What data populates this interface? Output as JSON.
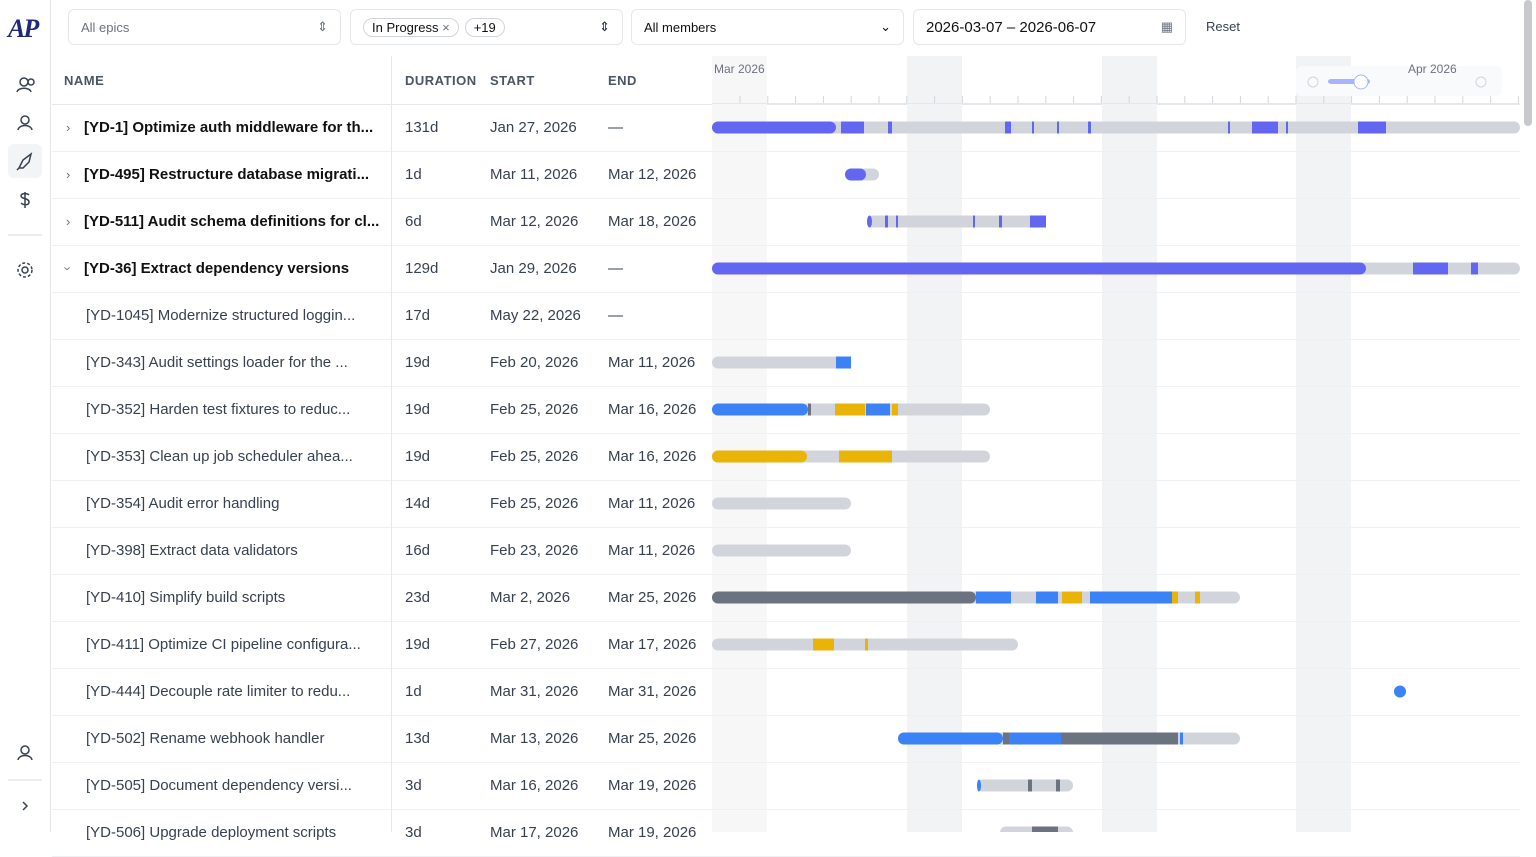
{
  "sidebar": {
    "logo": "AP"
  },
  "filters": {
    "epics": "All epics",
    "status_chip": "In Progress",
    "status_more": "+19",
    "members": "All members",
    "date_range": "2026-03-07 – 2026-06-07",
    "reset": "Reset"
  },
  "table": {
    "columns": [
      "NAME",
      "DURATION",
      "START",
      "END"
    ],
    "timeline_months": [
      "Mar 2026",
      "Apr 2026"
    ],
    "rows": [
      [
        "[YD-1] Optimize auth middleware for th...",
        "131d",
        "Jan 27, 2026",
        "—"
      ],
      [
        "[YD-495] Restructure database migrati...",
        "1d",
        "Mar 11, 2026",
        "Mar 12, 2026"
      ],
      [
        "[YD-511] Audit schema definitions for cl...",
        "6d",
        "Mar 12, 2026",
        "Mar 18, 2026"
      ],
      [
        "[YD-36] Extract dependency versions",
        "129d",
        "Jan 29, 2026",
        "—"
      ],
      [
        "[YD-1045] Modernize structured loggin...",
        "17d",
        "May 22, 2026",
        "—"
      ],
      [
        "[YD-343] Audit settings loader for the ...",
        "19d",
        "Feb 20, 2026",
        "Mar 11, 2026"
      ],
      [
        "[YD-352] Harden test fixtures to reduc...",
        "19d",
        "Feb 25, 2026",
        "Mar 16, 2026"
      ],
      [
        "[YD-353] Clean up job scheduler ahea...",
        "19d",
        "Feb 25, 2026",
        "Mar 16, 2026"
      ],
      [
        "[YD-354] Audit error handling",
        "14d",
        "Feb 25, 2026",
        "Mar 11, 2026"
      ],
      [
        "[YD-398] Extract data validators",
        "16d",
        "Feb 23, 2026",
        "Mar 11, 2026"
      ],
      [
        "[YD-410] Simplify build scripts",
        "23d",
        "Mar 2, 2026",
        "Mar 25, 2026"
      ],
      [
        "[YD-411] Optimize CI pipeline configura...",
        "19d",
        "Feb 27, 2026",
        "Mar 17, 2026"
      ],
      [
        "[YD-444] Decouple rate limiter to redu...",
        "1d",
        "Mar 31, 2026",
        "Mar 31, 2026"
      ],
      [
        "[YD-502] Rename webhook handler",
        "13d",
        "Mar 13, 2026",
        "Mar 25, 2026"
      ],
      [
        "[YD-505] Document dependency versi...",
        "3d",
        "Mar 16, 2026",
        "Mar 19, 2026"
      ],
      [
        "[YD-506] Upgrade deployment scripts",
        "3d",
        "Mar 17, 2026",
        "Mar 19, 2026"
      ]
    ]
  }
}
